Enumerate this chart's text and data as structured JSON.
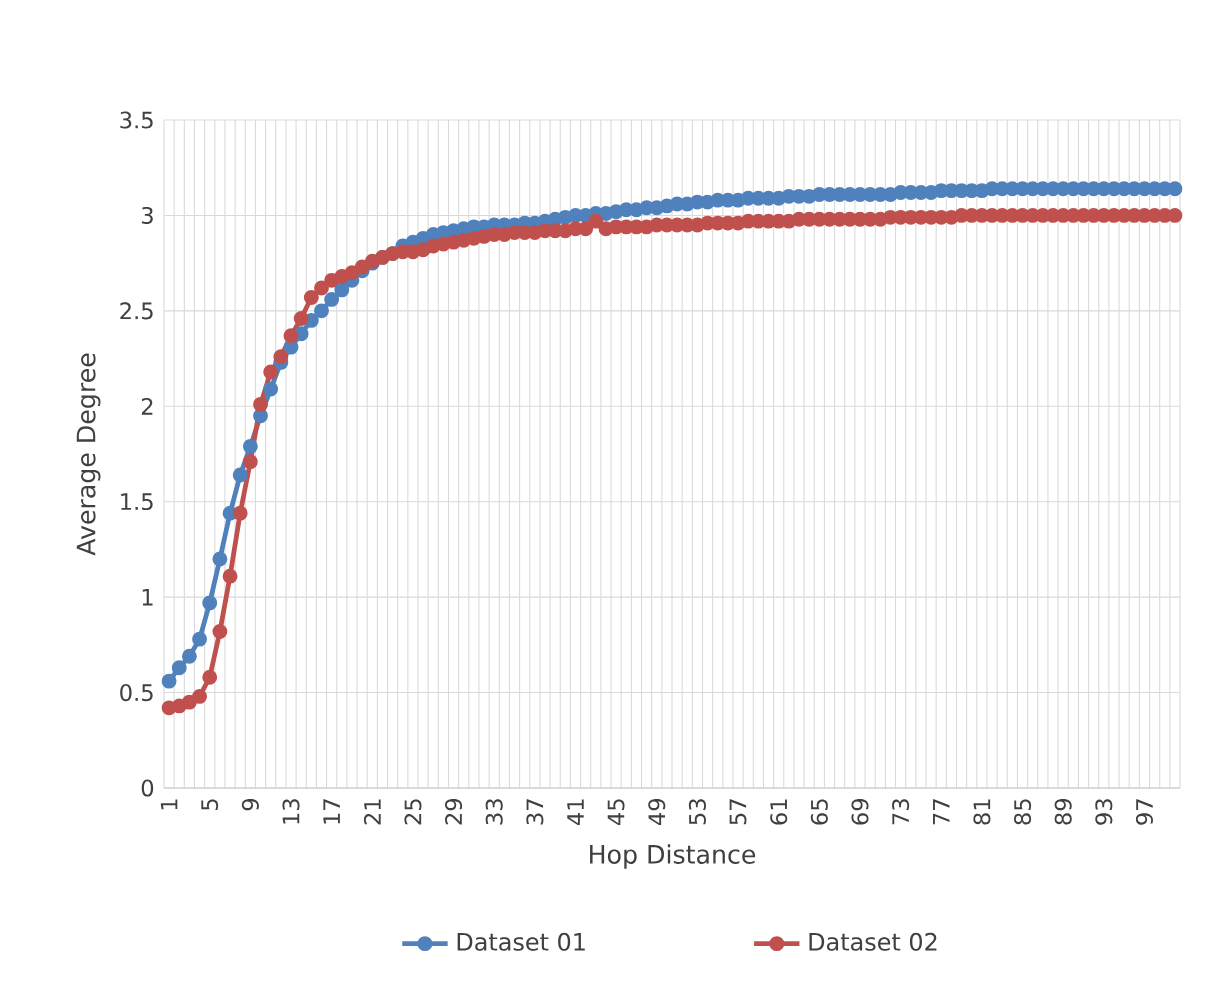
{
  "chart_data": {
    "type": "line",
    "xlabel": "Hop Distance",
    "ylabel": "Average Degree",
    "categories": [
      "1",
      null,
      null,
      null,
      "5",
      null,
      null,
      null,
      "9",
      null,
      null,
      null,
      "13",
      null,
      null,
      null,
      "17",
      null,
      null,
      null,
      "21",
      null,
      null,
      null,
      "25",
      null,
      null,
      null,
      "29",
      null,
      null,
      null,
      "33",
      null,
      null,
      null,
      "37",
      null,
      null,
      null,
      "41",
      null,
      null,
      null,
      "45",
      null,
      null,
      null,
      "49",
      null,
      null,
      null,
      "53",
      null,
      null,
      null,
      "57",
      null,
      null,
      null,
      "61",
      null,
      null,
      null,
      "65",
      null,
      null,
      null,
      "69",
      null,
      null,
      null,
      "73",
      null,
      null,
      null,
      "77",
      null,
      null,
      null,
      "81",
      null,
      null,
      null,
      "85",
      null,
      null,
      null,
      "89",
      null,
      null,
      null,
      "93",
      null,
      null,
      null,
      "97",
      null,
      null,
      null
    ],
    "series": [
      {
        "name": "Dataset 01",
        "color": "#4f81bd",
        "values": [
          0.56,
          0.63,
          0.69,
          0.78,
          0.97,
          1.2,
          1.44,
          1.64,
          1.79,
          1.95,
          2.09,
          2.23,
          2.31,
          2.38,
          2.45,
          2.5,
          2.56,
          2.61,
          2.66,
          2.71,
          2.75,
          2.78,
          2.8,
          2.84,
          2.86,
          2.88,
          2.9,
          2.91,
          2.92,
          2.93,
          2.94,
          2.94,
          2.95,
          2.95,
          2.95,
          2.96,
          2.96,
          2.97,
          2.98,
          2.99,
          3.0,
          3.0,
          3.01,
          3.01,
          3.02,
          3.03,
          3.03,
          3.04,
          3.04,
          3.05,
          3.06,
          3.06,
          3.07,
          3.07,
          3.08,
          3.08,
          3.08,
          3.09,
          3.09,
          3.09,
          3.09,
          3.1,
          3.1,
          3.1,
          3.11,
          3.11,
          3.11,
          3.11,
          3.11,
          3.11,
          3.11,
          3.11,
          3.12,
          3.12,
          3.12,
          3.12,
          3.13,
          3.13,
          3.13,
          3.13,
          3.13,
          3.14,
          3.14,
          3.14,
          3.14,
          3.14,
          3.14,
          3.14,
          3.14,
          3.14,
          3.14,
          3.14,
          3.14,
          3.14,
          3.14,
          3.14,
          3.14,
          3.14,
          3.14,
          3.14
        ]
      },
      {
        "name": "Dataset 02",
        "color": "#c0504d",
        "values": [
          0.42,
          0.43,
          0.45,
          0.48,
          0.58,
          0.82,
          1.11,
          1.44,
          1.71,
          2.01,
          2.18,
          2.26,
          2.37,
          2.46,
          2.57,
          2.62,
          2.66,
          2.68,
          2.7,
          2.73,
          2.76,
          2.78,
          2.8,
          2.81,
          2.81,
          2.82,
          2.84,
          2.85,
          2.86,
          2.87,
          2.88,
          2.89,
          2.9,
          2.9,
          2.91,
          2.91,
          2.91,
          2.92,
          2.92,
          2.92,
          2.93,
          2.93,
          2.97,
          2.93,
          2.94,
          2.94,
          2.94,
          2.94,
          2.95,
          2.95,
          2.95,
          2.95,
          2.95,
          2.96,
          2.96,
          2.96,
          2.96,
          2.97,
          2.97,
          2.97,
          2.97,
          2.97,
          2.98,
          2.98,
          2.98,
          2.98,
          2.98,
          2.98,
          2.98,
          2.98,
          2.98,
          2.99,
          2.99,
          2.99,
          2.99,
          2.99,
          2.99,
          2.99,
          3.0,
          3.0,
          3.0,
          3.0,
          3.0,
          3.0,
          3.0,
          3.0,
          3.0,
          3.0,
          3.0,
          3.0,
          3.0,
          3.0,
          3.0,
          3.0,
          3.0,
          3.0,
          3.0,
          3.0,
          3.0,
          3.0
        ]
      }
    ],
    "ylim": [
      0,
      3.5
    ],
    "yticks": [
      0,
      0.5,
      1,
      1.5,
      2,
      2.5,
      3,
      3.5
    ],
    "grid": true,
    "legend": "bottom",
    "marker": "circle",
    "line_style": "solid"
  }
}
